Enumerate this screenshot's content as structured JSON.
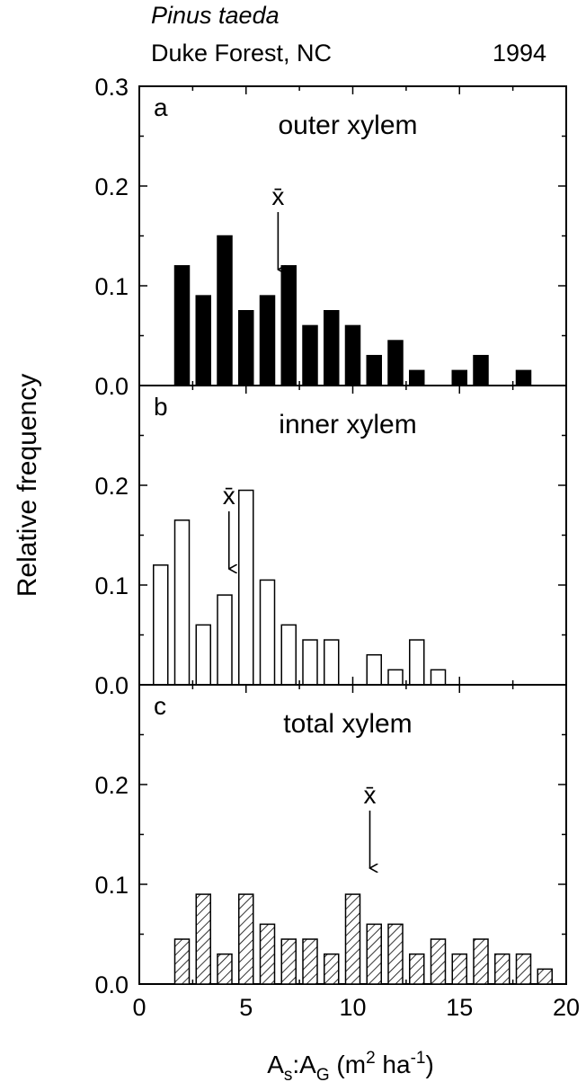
{
  "header": {
    "species": "Pinus taeda",
    "site": "Duke Forest, NC",
    "year": "1994"
  },
  "chart_data": [
    {
      "type": "bar",
      "panel_letter": "a",
      "title": "outer xylem",
      "fill": "solid",
      "mean_marker": {
        "label": "x̄",
        "x": 6.5
      },
      "x": [
        2,
        3,
        4,
        5,
        6,
        7,
        8,
        9,
        10,
        11,
        12,
        13,
        15,
        16,
        18
      ],
      "values": [
        0.12,
        0.09,
        0.15,
        0.075,
        0.09,
        0.12,
        0.06,
        0.075,
        0.06,
        0.03,
        0.045,
        0.015,
        0.015,
        0.03,
        0.015
      ],
      "ylabel": "Relative frequency",
      "ylim": [
        0,
        0.3
      ],
      "xlim": [
        0,
        20
      ],
      "yticks": [
        "0.0",
        "0.1",
        "0.2",
        "0.3"
      ]
    },
    {
      "type": "bar",
      "panel_letter": "b",
      "title": "inner xylem",
      "fill": "open",
      "mean_marker": {
        "label": "x̄",
        "x": 4.2
      },
      "x": [
        1,
        2,
        3,
        4,
        5,
        6,
        7,
        8,
        9,
        11,
        12,
        13,
        14
      ],
      "values": [
        0.12,
        0.165,
        0.06,
        0.09,
        0.195,
        0.105,
        0.06,
        0.045,
        0.045,
        0.03,
        0.015,
        0.045,
        0.015
      ],
      "ylim": [
        0,
        0.3
      ],
      "xlim": [
        0,
        20
      ],
      "yticks": [
        "0.0",
        "0.1",
        "0.2"
      ]
    },
    {
      "type": "bar",
      "panel_letter": "c",
      "title": "total xylem",
      "fill": "hatched",
      "mean_marker": {
        "label": "x̄",
        "x": 10.8
      },
      "x": [
        2,
        3,
        4,
        5,
        6,
        7,
        8,
        9,
        10,
        11,
        12,
        13,
        14,
        15,
        16,
        17,
        18,
        19
      ],
      "values": [
        0.045,
        0.09,
        0.03,
        0.09,
        0.06,
        0.045,
        0.045,
        0.03,
        0.09,
        0.06,
        0.06,
        0.03,
        0.045,
        0.03,
        0.045,
        0.03,
        0.03,
        0.015
      ],
      "ylim": [
        0,
        0.3
      ],
      "xlim": [
        0,
        20
      ],
      "yticks": [
        "0.0",
        "0.1",
        "0.2"
      ],
      "xticks": [
        "0",
        "5",
        "10",
        "15",
        "20"
      ],
      "xlabel": "As:AG (m2 ha-1)"
    }
  ],
  "axis_label_parts": {
    "xlabel_main1": "A",
    "xlabel_sub1": "s",
    "xlabel_main2": ":A",
    "xlabel_sub2": "G",
    "xlabel_main3": " (m",
    "xlabel_sup1": "2",
    "xlabel_main4": " ha",
    "xlabel_sup2": "-1",
    "xlabel_main5": ")"
  }
}
